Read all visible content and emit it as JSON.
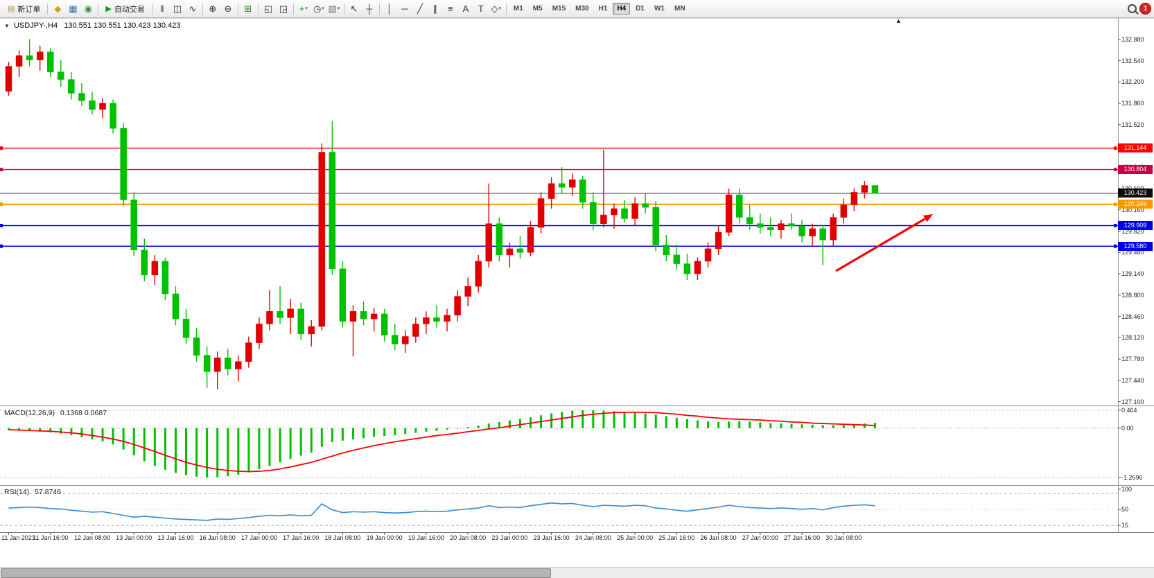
{
  "glyphs": {
    "chart_menu": "▼",
    "shift_marker": "▲",
    "caret": "▾"
  },
  "toolbar": {
    "timeframes": [
      "M1",
      "M5",
      "M15",
      "M30",
      "H1",
      "H4",
      "D1",
      "W1",
      "MN"
    ],
    "active_timeframe": "H4",
    "alert_count": "1"
  },
  "toolbar_items": [
    {
      "type": "button",
      "name": "new-order-button",
      "icon_name": "new-order-icon",
      "glyph": "▤",
      "icon_color": "#b89a4e",
      "label": "新订单"
    },
    {
      "type": "sep"
    },
    {
      "type": "icon",
      "name": "market-watch-icon",
      "glyph": "◆",
      "color": "#d4a017"
    },
    {
      "type": "icon",
      "name": "data-window-icon",
      "glyph": "▦",
      "color": "#4472a8"
    },
    {
      "type": "icon",
      "name": "navigator-icon",
      "glyph": "◉",
      "color": "#3a8a3a"
    },
    {
      "type": "sep"
    },
    {
      "type": "button",
      "name": "auto-trading-button",
      "icon_name": "auto-trading-icon",
      "glyph": "▶",
      "icon_color": "#00a000",
      "label": "自动交易"
    },
    {
      "type": "sep"
    },
    {
      "type": "icon",
      "name": "bar-chart-icon",
      "glyph": "‖",
      "color": "#333333"
    },
    {
      "type": "icon",
      "name": "candlestick-chart-icon",
      "glyph": "◫",
      "color": "#333333"
    },
    {
      "type": "icon",
      "name": "line-chart-icon",
      "glyph": "∿",
      "color": "#333333"
    },
    {
      "type": "sep"
    },
    {
      "type": "icon",
      "name": "zoom-in-icon",
      "glyph": "⊕",
      "color": "#333333"
    },
    {
      "type": "icon",
      "name": "zoom-out-icon",
      "glyph": "⊖",
      "color": "#333333"
    },
    {
      "type": "sep"
    },
    {
      "type": "icon",
      "name": "tile-windows-icon",
      "glyph": "⊞",
      "color": "#2a8a2a"
    },
    {
      "type": "sep"
    },
    {
      "type": "icon",
      "name": "indicators-window-icon",
      "glyph": "◱",
      "color": "#333333"
    },
    {
      "type": "icon",
      "name": "objects-window-icon",
      "glyph": "◲",
      "color": "#333333"
    },
    {
      "type": "sep"
    },
    {
      "type": "icon",
      "name": "add-indicator-icon",
      "glyph": "+",
      "color": "#009900",
      "dropdown": true
    },
    {
      "type": "icon",
      "name": "periods-icon",
      "glyph": "◷",
      "color": "#333333",
      "dropdown": true
    },
    {
      "type": "icon",
      "name": "templates-icon",
      "glyph": "▧",
      "color": "#777777",
      "dropdown": true
    },
    {
      "type": "sep"
    },
    {
      "type": "icon",
      "name": "cursor-icon",
      "glyph": "↖",
      "color": "#333333"
    },
    {
      "type": "icon",
      "name": "crosshair-icon",
      "glyph": "┼",
      "color": "#333333"
    },
    {
      "type": "sep"
    },
    {
      "type": "icon",
      "name": "vertical-line-icon",
      "glyph": "│",
      "color": "#333333"
    },
    {
      "type": "icon",
      "name": "horizontal-line-icon",
      "glyph": "─",
      "color": "#333333"
    },
    {
      "type": "icon",
      "name": "trendline-icon",
      "glyph": "╱",
      "color": "#333333"
    },
    {
      "type": "icon",
      "name": "channel-icon",
      "glyph": "∥",
      "color": "#333333"
    },
    {
      "type": "icon",
      "name": "fibonacci-icon",
      "glyph": "≡",
      "color": "#333333"
    },
    {
      "type": "icon",
      "name": "text-icon",
      "glyph": "A",
      "color": "#333333"
    },
    {
      "type": "icon",
      "name": "label-icon",
      "glyph": "T",
      "color": "#333333"
    },
    {
      "type": "icon",
      "name": "shapes-icon",
      "glyph": "◇",
      "color": "#333333",
      "dropdown": true
    },
    {
      "type": "sep"
    },
    {
      "type": "timeframes"
    },
    {
      "type": "spacer"
    },
    {
      "type": "icon",
      "name": "search-icon",
      "glyph": "",
      "color": "#333333"
    },
    {
      "type": "alert"
    }
  ],
  "chart_data": [
    {
      "type": "candlestick",
      "title": "USDJPY-,H4",
      "ohlc_display": "130.551 130.551 130.423 130.423",
      "bull_color": "#e00000",
      "bear_color": "#00c000",
      "y_axis": {
        "min": 127.1,
        "max": 132.88,
        "tick_step": 0.34,
        "ticks": [
          "132.880",
          "132.540",
          "132.200",
          "131.860",
          "131.520",
          "131.180",
          "130.840",
          "130.500",
          "130.160",
          "129.820",
          "129.480",
          "129.140",
          "128.800",
          "128.460",
          "128.120",
          "127.780",
          "127.440",
          "127.100"
        ]
      },
      "x_labels": [
        "11 Jan 2023",
        "11 Jan 16:00",
        "12 Jan 08:00",
        "13 Jan 00:00",
        "13 Jan 16:00",
        "16 Jan 08:00",
        "17 Jan 00:00",
        "17 Jan 16:00",
        "18 Jan 08:00",
        "19 Jan 00:00",
        "19 Jan 16:00",
        "20 Jan 08:00",
        "23 Jan 00:00",
        "23 Jan 16:00",
        "24 Jan 08:00",
        "25 Jan 00:00",
        "25 Jan 16:00",
        "26 Jan 08:00",
        "27 Jan 00:00",
        "27 Jan 16:00",
        "30 Jan 08:00"
      ],
      "candles_per_x_label": 4,
      "candles": [
        [
          132.05,
          132.52,
          131.98,
          132.45
        ],
        [
          132.45,
          132.7,
          132.28,
          132.62
        ],
        [
          132.62,
          132.88,
          132.45,
          132.55
        ],
        [
          132.55,
          132.78,
          132.38,
          132.68
        ],
        [
          132.68,
          132.74,
          132.28,
          132.36
        ],
        [
          132.36,
          132.55,
          132.12,
          132.24
        ],
        [
          132.24,
          132.36,
          131.92,
          132.02
        ],
        [
          132.02,
          132.18,
          131.82,
          131.9
        ],
        [
          131.9,
          132.04,
          131.68,
          131.76
        ],
        [
          131.76,
          131.94,
          131.62,
          131.86
        ],
        [
          131.86,
          131.92,
          131.38,
          131.46
        ],
        [
          131.46,
          131.54,
          130.22,
          130.32
        ],
        [
          130.32,
          130.44,
          129.42,
          129.52
        ],
        [
          129.52,
          129.7,
          129.02,
          129.12
        ],
        [
          129.12,
          129.44,
          128.96,
          129.34
        ],
        [
          129.34,
          129.4,
          128.72,
          128.82
        ],
        [
          128.82,
          128.94,
          128.32,
          128.42
        ],
        [
          128.42,
          128.58,
          128.02,
          128.12
        ],
        [
          128.12,
          128.28,
          127.74,
          127.84
        ],
        [
          127.84,
          127.98,
          127.32,
          127.58
        ],
        [
          127.58,
          127.9,
          127.3,
          127.8
        ],
        [
          127.8,
          127.94,
          127.52,
          127.62
        ],
        [
          127.62,
          127.84,
          127.42,
          127.74
        ],
        [
          127.74,
          128.14,
          127.64,
          128.04
        ],
        [
          128.04,
          128.44,
          127.94,
          128.34
        ],
        [
          128.34,
          128.88,
          128.24,
          128.54
        ],
        [
          128.54,
          128.94,
          128.34,
          128.44
        ],
        [
          128.44,
          128.74,
          128.18,
          128.58
        ],
        [
          128.58,
          128.68,
          128.08,
          128.18
        ],
        [
          128.18,
          128.4,
          127.98,
          128.3
        ],
        [
          128.3,
          131.22,
          128.24,
          131.08
        ],
        [
          131.08,
          131.58,
          129.12,
          129.22
        ],
        [
          129.22,
          129.34,
          128.28,
          128.38
        ],
        [
          128.38,
          128.64,
          127.82,
          128.54
        ],
        [
          128.54,
          128.7,
          128.32,
          128.42
        ],
        [
          128.42,
          128.6,
          128.22,
          128.5
        ],
        [
          128.5,
          128.58,
          128.06,
          128.16
        ],
        [
          128.16,
          128.34,
          127.92,
          128.02
        ],
        [
          128.02,
          128.24,
          127.88,
          128.14
        ],
        [
          128.14,
          128.44,
          128.04,
          128.34
        ],
        [
          128.34,
          128.54,
          128.18,
          128.44
        ],
        [
          128.44,
          128.64,
          128.28,
          128.38
        ],
        [
          128.38,
          128.58,
          128.22,
          128.48
        ],
        [
          128.48,
          128.88,
          128.38,
          128.78
        ],
        [
          128.78,
          129.08,
          128.62,
          128.94
        ],
        [
          128.94,
          129.44,
          128.84,
          129.34
        ],
        [
          129.34,
          130.58,
          129.24,
          129.94
        ],
        [
          129.94,
          130.04,
          129.34,
          129.44
        ],
        [
          129.44,
          129.64,
          129.24,
          129.54
        ],
        [
          129.54,
          129.74,
          129.38,
          129.48
        ],
        [
          129.48,
          129.98,
          129.42,
          129.88
        ],
        [
          129.88,
          130.44,
          129.78,
          130.34
        ],
        [
          130.34,
          130.68,
          130.18,
          130.58
        ],
        [
          130.58,
          130.84,
          130.42,
          130.52
        ],
        [
          130.52,
          130.74,
          130.38,
          130.64
        ],
        [
          130.64,
          130.7,
          130.18,
          130.28
        ],
        [
          130.28,
          130.44,
          129.84,
          129.94
        ],
        [
          129.94,
          131.12,
          129.88,
          130.08
        ],
        [
          130.08,
          130.26,
          129.86,
          130.18
        ],
        [
          130.18,
          130.32,
          129.96,
          130.02
        ],
        [
          130.02,
          130.36,
          129.92,
          130.26
        ],
        [
          130.26,
          130.42,
          130.1,
          130.2
        ],
        [
          130.2,
          130.3,
          129.5,
          129.6
        ],
        [
          129.6,
          129.76,
          129.34,
          129.44
        ],
        [
          129.44,
          129.6,
          129.2,
          129.3
        ],
        [
          129.3,
          129.46,
          129.04,
          129.14
        ],
        [
          129.14,
          129.4,
          129.04,
          129.34
        ],
        [
          129.34,
          129.64,
          129.24,
          129.54
        ],
        [
          129.54,
          129.9,
          129.44,
          129.8
        ],
        [
          129.8,
          130.5,
          129.74,
          130.4
        ],
        [
          130.4,
          130.5,
          129.94,
          130.04
        ],
        [
          130.04,
          130.24,
          129.84,
          129.94
        ],
        [
          129.94,
          130.1,
          129.78,
          129.88
        ],
        [
          129.88,
          130.04,
          129.74,
          129.84
        ],
        [
          129.84,
          130.0,
          129.7,
          129.94
        ],
        [
          129.94,
          130.1,
          129.84,
          129.9
        ],
        [
          129.9,
          130.0,
          129.64,
          129.74
        ],
        [
          129.74,
          129.94,
          129.58,
          129.86
        ],
        [
          129.86,
          129.92,
          129.28,
          129.68
        ],
        [
          129.68,
          130.1,
          129.58,
          130.04
        ],
        [
          130.04,
          130.34,
          129.94,
          130.24
        ],
        [
          130.24,
          130.5,
          130.14,
          130.44
        ],
        [
          130.44,
          130.62,
          130.34,
          130.55
        ],
        [
          130.55,
          130.55,
          130.42,
          130.42
        ]
      ],
      "levels": [
        {
          "value": 131.144,
          "color": "#ff0000"
        },
        {
          "value": 130.804,
          "color": "#cc0044"
        },
        {
          "value": 130.249,
          "color": "#ff9800"
        },
        {
          "value": 129.909,
          "color": "#0000ee"
        },
        {
          "value": 129.58,
          "color": "#0000ee"
        }
      ],
      "current_price": {
        "value": 130.423,
        "line_color": "#3c3c3c"
      },
      "price_badges": [
        {
          "label": "131.144",
          "value": 131.144,
          "color": "#ff0000"
        },
        {
          "label": "130.804",
          "value": 130.804,
          "color": "#cc0044"
        },
        {
          "label": "130.423",
          "value": 130.423,
          "color": "#0a0a0a"
        },
        {
          "label": "130.249",
          "value": 130.249,
          "color": "#ff9800"
        },
        {
          "label": "129.909",
          "value": 129.909,
          "color": "#0000ee"
        },
        {
          "label": "129.580",
          "value": 129.58,
          "color": "#0000ee"
        }
      ],
      "annotations": [
        {
          "type": "arrow",
          "color": "#ff0000",
          "from": [
            1206,
            391
          ],
          "to": [
            1346,
            309
          ]
        }
      ]
    },
    {
      "type": "macd_histogram",
      "label": "MACD(12,26,9)",
      "values_display": "0.1368 0.0687",
      "histogram_color": "#00c000",
      "signal_color": "#ff0000",
      "y_ticks": [
        {
          "label": "0.464",
          "value": 0.464
        },
        {
          "label": "0.00",
          "value": 0
        },
        {
          "label": "-1.2696",
          "value": -1.2696
        }
      ],
      "histogram": [
        -0.05,
        -0.06,
        -0.08,
        -0.09,
        -0.11,
        -0.14,
        -0.18,
        -0.23,
        -0.29,
        -0.34,
        -0.42,
        -0.55,
        -0.7,
        -0.85,
        -0.97,
        -1.07,
        -1.15,
        -1.21,
        -1.25,
        -1.27,
        -1.26,
        -1.24,
        -1.2,
        -1.14,
        -1.06,
        -0.97,
        -0.88,
        -0.79,
        -0.71,
        -0.63,
        -0.48,
        -0.36,
        -0.32,
        -0.29,
        -0.26,
        -0.22,
        -0.2,
        -0.18,
        -0.15,
        -0.12,
        -0.09,
        -0.07,
        -0.04,
        -0.01,
        0.03,
        0.07,
        0.12,
        0.16,
        0.2,
        0.24,
        0.28,
        0.33,
        0.38,
        0.42,
        0.45,
        0.46,
        0.46,
        0.45,
        0.44,
        0.42,
        0.4,
        0.38,
        0.35,
        0.31,
        0.27,
        0.23,
        0.2,
        0.17,
        0.16,
        0.17,
        0.18,
        0.17,
        0.15,
        0.13,
        0.12,
        0.11,
        0.1,
        0.09,
        0.08,
        0.08,
        0.09,
        0.1,
        0.12,
        0.137
      ],
      "signal": [
        -0.04,
        -0.05,
        -0.06,
        -0.07,
        -0.08,
        -0.1,
        -0.12,
        -0.15,
        -0.19,
        -0.23,
        -0.28,
        -0.34,
        -0.42,
        -0.51,
        -0.6,
        -0.7,
        -0.79,
        -0.88,
        -0.95,
        -1.01,
        -1.06,
        -1.09,
        -1.11,
        -1.12,
        -1.11,
        -1.09,
        -1.05,
        -1.0,
        -0.94,
        -0.88,
        -0.8,
        -0.72,
        -0.64,
        -0.57,
        -0.51,
        -0.45,
        -0.4,
        -0.35,
        -0.31,
        -0.27,
        -0.23,
        -0.19,
        -0.16,
        -0.13,
        -0.09,
        -0.06,
        -0.02,
        0.01,
        0.05,
        0.09,
        0.13,
        0.17,
        0.21,
        0.25,
        0.29,
        0.33,
        0.36,
        0.38,
        0.4,
        0.41,
        0.41,
        0.41,
        0.4,
        0.38,
        0.36,
        0.33,
        0.31,
        0.28,
        0.26,
        0.24,
        0.23,
        0.22,
        0.21,
        0.19,
        0.18,
        0.16,
        0.15,
        0.13,
        0.12,
        0.11,
        0.1,
        0.09,
        0.08,
        0.069
      ]
    },
    {
      "type": "line",
      "label": "RSI(14)",
      "value_display": "57.8746",
      "line_color": "#3f8fd0",
      "levels": [
        85,
        50,
        15
      ],
      "y_ticks": [
        {
          "label": "100",
          "value": 100
        },
        {
          "label": "50",
          "value": 50
        },
        {
          "label": "15",
          "value": 15
        }
      ],
      "values": [
        53,
        54,
        55,
        54,
        52,
        51,
        48,
        46,
        44,
        45,
        41,
        37,
        33,
        35,
        33,
        31,
        29,
        28,
        27,
        26,
        29,
        28,
        30,
        32,
        35,
        37,
        36,
        38,
        36,
        37,
        62,
        49,
        43,
        45,
        44,
        45,
        43,
        42,
        43,
        45,
        46,
        45,
        46,
        49,
        51,
        53,
        58,
        54,
        55,
        54,
        58,
        61,
        64,
        62,
        63,
        59,
        56,
        59,
        58,
        57,
        59,
        58,
        53,
        51,
        48,
        46,
        49,
        52,
        55,
        59,
        56,
        54,
        53,
        52,
        53,
        52,
        50,
        52,
        49,
        54,
        57,
        59,
        60,
        57.9
      ]
    }
  ]
}
